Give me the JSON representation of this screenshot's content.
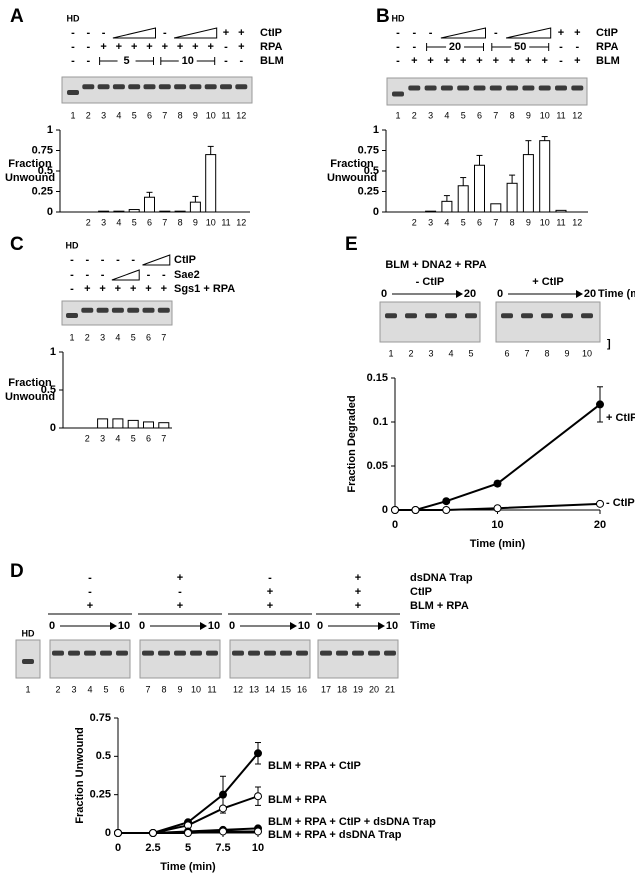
{
  "panels": {
    "A": {
      "label": "A",
      "hd": "HD",
      "rows": [
        {
          "name": "CtIP",
          "marks": [
            "-",
            "-",
            "-",
            null,
            null,
            null,
            "-",
            null,
            null,
            null,
            "+",
            "+"
          ]
        },
        {
          "name": "RPA",
          "marks": [
            "-",
            "-",
            "+",
            "+",
            "+",
            "+",
            "+",
            "+",
            "+",
            "+",
            "-",
            "+"
          ]
        },
        {
          "name": "BLM",
          "marks": [
            "-",
            "-",
            null,
            null,
            null,
            null,
            null,
            null,
            null,
            null,
            "-",
            "-"
          ],
          "spans": [
            "5",
            "10"
          ]
        }
      ],
      "lanes": [
        "1",
        "2",
        "3",
        "4",
        "5",
        "6",
        "7",
        "8",
        "9",
        "10",
        "11",
        "12"
      ]
    },
    "B": {
      "label": "B",
      "hd": "HD",
      "rows": [
        {
          "name": "CtIP",
          "marks": [
            "-",
            "-",
            "-",
            null,
            null,
            null,
            "-",
            null,
            null,
            null,
            "+",
            "+"
          ]
        },
        {
          "name": "RPA",
          "marks": [
            "-",
            "-",
            null,
            null,
            null,
            null,
            null,
            null,
            null,
            null,
            "-",
            "-"
          ],
          "spans": [
            "20",
            "50"
          ]
        },
        {
          "name": "BLM",
          "marks": [
            "-",
            "+",
            "+",
            "+",
            "+",
            "+",
            "+",
            "+",
            "+",
            "+",
            "-",
            "+"
          ]
        }
      ],
      "lanes": [
        "1",
        "2",
        "3",
        "4",
        "5",
        "6",
        "7",
        "8",
        "9",
        "10",
        "11",
        "12"
      ]
    },
    "C": {
      "label": "C",
      "hd": "HD",
      "rows": [
        {
          "name": "CtIP",
          "marks": [
            "-",
            "-",
            "-",
            "-",
            "-",
            null,
            null
          ]
        },
        {
          "name": "Sae2",
          "marks": [
            "-",
            "-",
            "-",
            null,
            null,
            "-",
            "-"
          ]
        },
        {
          "name": "Sgs1 + RPA",
          "marks": [
            "-",
            "+",
            "+",
            "+",
            "+",
            "+",
            "+"
          ]
        }
      ],
      "lanes": [
        "1",
        "2",
        "3",
        "4",
        "5",
        "6",
        "7"
      ]
    },
    "E": {
      "label": "E",
      "header": "BLM + DNA2 + RPA",
      "gels": [
        {
          "name": "- CtIP",
          "start": "0",
          "end": "20"
        },
        {
          "name": "+ CtIP",
          "start": "0",
          "end": "20"
        }
      ],
      "time": "Time (min)",
      "bracket": "]",
      "lanes": [
        "1",
        "2",
        "3",
        "4",
        "5",
        "6",
        "7",
        "8",
        "9",
        "10"
      ]
    },
    "D": {
      "label": "D",
      "hd": "HD",
      "rows": [
        {
          "name": "dsDNA Trap",
          "marks": [
            "-",
            "+",
            "-",
            "+"
          ]
        },
        {
          "name": "CtIP",
          "marks": [
            "-",
            "-",
            "+",
            "+"
          ]
        },
        {
          "name": "BLM + RPA",
          "marks": [
            "+",
            "+",
            "+",
            "+"
          ]
        }
      ],
      "time": {
        "name": "Time",
        "start": "0",
        "end": "10"
      },
      "lanes": [
        "1",
        "2",
        "3",
        "4",
        "5",
        "6",
        "7",
        "8",
        "9",
        "10",
        "11",
        "12",
        "13",
        "14",
        "15",
        "16",
        "17",
        "18",
        "19",
        "20",
        "21"
      ]
    }
  },
  "chart_data": [
    {
      "type": "bar",
      "categories": [
        "2",
        "3",
        "4",
        "5",
        "6",
        "7",
        "8",
        "9",
        "10",
        "11",
        "12"
      ],
      "values": [
        0,
        0.01,
        0.01,
        0.03,
        0.18,
        0.01,
        0.01,
        0.12,
        0.7,
        0,
        0
      ],
      "errors": [
        null,
        null,
        null,
        null,
        0.06,
        null,
        null,
        0.07,
        0.1,
        null,
        null
      ],
      "ylabel": [
        "Fraction",
        "Unwound"
      ],
      "ylim": [
        0,
        1
      ],
      "yticks": [
        0,
        0.25,
        0.5,
        0.75,
        1
      ],
      "color": "#ffffff"
    },
    {
      "type": "bar",
      "categories": [
        "2",
        "3",
        "4",
        "5",
        "6",
        "7",
        "8",
        "9",
        "10",
        "11",
        "12"
      ],
      "values": [
        0,
        0.01,
        0.13,
        0.32,
        0.57,
        0.1,
        0.35,
        0.7,
        0.87,
        0.02,
        0
      ],
      "errors": [
        null,
        null,
        0.07,
        0.1,
        0.12,
        null,
        0.1,
        0.17,
        0.05,
        null,
        null
      ],
      "ylabel": [
        "Fraction",
        "Unwound"
      ],
      "ylim": [
        0,
        1
      ],
      "yticks": [
        0,
        0.25,
        0.5,
        0.75,
        1
      ],
      "color": "#ffffff"
    },
    {
      "type": "bar",
      "categories": [
        "2",
        "3",
        "4",
        "5",
        "6",
        "7"
      ],
      "values": [
        0,
        0.12,
        0.12,
        0.1,
        0.08,
        0.07
      ],
      "errors": [
        null,
        null,
        null,
        null,
        null,
        null
      ],
      "ylabel": [
        "Fraction",
        "Unwound"
      ],
      "ylim": [
        0,
        1
      ],
      "yticks": [
        0,
        0.5,
        1
      ],
      "color": "#ffffff"
    },
    {
      "type": "line",
      "x": [
        0,
        2,
        5,
        10,
        20
      ],
      "xlim": [
        0,
        20
      ],
      "xticks": [
        0,
        10,
        20
      ],
      "ylim": [
        0,
        0.15
      ],
      "yticks": [
        0,
        0.05,
        0.1,
        0.15
      ],
      "xlabel": "Time (min)",
      "ylabel": "Fraction Degraded",
      "series": [
        {
          "name": "+ CtIP",
          "color": "#000000",
          "marker": "filled",
          "values": [
            0,
            0,
            0.01,
            0.03,
            0.12
          ],
          "errors": [
            null,
            null,
            null,
            0.003,
            0.02
          ]
        },
        {
          "name": "- CtIP",
          "color": "#000000",
          "marker": "open",
          "values": [
            0,
            0,
            0,
            0.002,
            0.007
          ],
          "errors": [
            null,
            null,
            null,
            null,
            null
          ]
        }
      ]
    },
    {
      "type": "line",
      "x": [
        0,
        2.5,
        5,
        7.5,
        10
      ],
      "xlim": [
        0,
        10
      ],
      "xticks": [
        0,
        2.5,
        5,
        7.5,
        10
      ],
      "ylim": [
        0,
        0.75
      ],
      "yticks": [
        0,
        0.25,
        0.5,
        0.75
      ],
      "xlabel": "Time (min)",
      "ylabel": "Fraction Unwound",
      "series": [
        {
          "name": "BLM + RPA + CtIP",
          "color": "#000000",
          "marker": "filled",
          "values": [
            0,
            0,
            0.07,
            0.25,
            0.52
          ],
          "errors": [
            null,
            null,
            null,
            0.12,
            0.07
          ]
        },
        {
          "name": "BLM + RPA",
          "color": "#000000",
          "marker": "open",
          "values": [
            0,
            0,
            0.05,
            0.16,
            0.24
          ],
          "errors": [
            null,
            null,
            null,
            null,
            0.06
          ]
        },
        {
          "name": "BLM + RPA + CtIP + dsDNA Trap",
          "color": "#000000",
          "marker": "filled",
          "values": [
            0,
            0,
            0.01,
            0.02,
            0.03
          ],
          "errors": [
            null,
            null,
            null,
            null,
            null
          ]
        },
        {
          "name": "BLM + RPA + dsDNA Trap",
          "color": "#000000",
          "marker": "open",
          "values": [
            0,
            0,
            0,
            0.01,
            0.01
          ],
          "errors": [
            null,
            null,
            null,
            null,
            null
          ]
        }
      ]
    }
  ]
}
